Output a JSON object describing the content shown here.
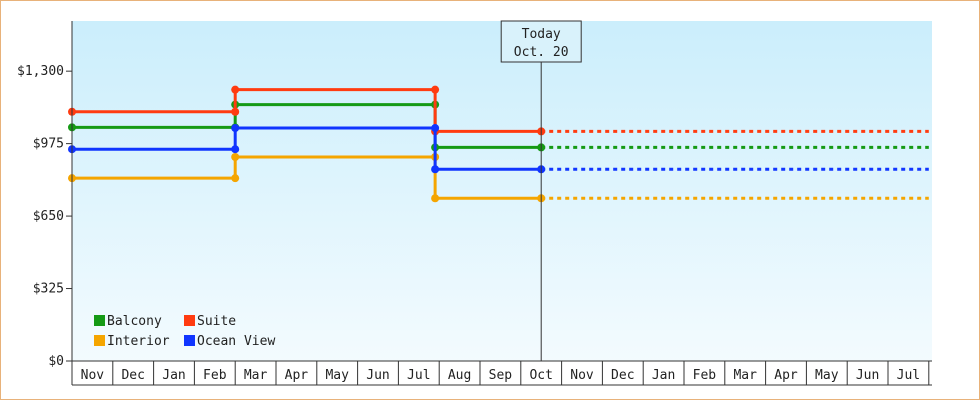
{
  "chart_data": {
    "type": "line",
    "step": true,
    "x_labels": [
      "Nov",
      "Dec",
      "Jan",
      "Feb",
      "Mar",
      "Apr",
      "May",
      "Jun",
      "Jul",
      "Aug",
      "Sep",
      "Oct",
      "Nov",
      "Dec",
      "Jan",
      "Feb",
      "Mar",
      "Apr",
      "May",
      "Jun",
      "Jul"
    ],
    "y_ticks": [
      "$0",
      "$325",
      "$650",
      "$975",
      "$1,300"
    ],
    "ylim": [
      0,
      1525
    ],
    "today": {
      "line1": "Today",
      "line2": "Oct. 20",
      "x": 11.5
    },
    "series": [
      {
        "name": "Balcony",
        "color": "#159a15",
        "points": [
          [
            0,
            1048
          ],
          [
            4,
            1048
          ],
          [
            4,
            1150
          ],
          [
            8.9,
            1150
          ],
          [
            8.9,
            958
          ],
          [
            11.5,
            958
          ]
        ],
        "projected_to": 21
      },
      {
        "name": "Suite",
        "color": "#ff3b10",
        "points": [
          [
            0,
            1118
          ],
          [
            4,
            1118
          ],
          [
            4,
            1217
          ],
          [
            8.9,
            1217
          ],
          [
            8.9,
            1030
          ],
          [
            11.5,
            1030
          ]
        ],
        "projected_to": 21
      },
      {
        "name": "Interior",
        "color": "#f5a500",
        "points": [
          [
            0,
            820
          ],
          [
            4,
            820
          ],
          [
            4,
            915
          ],
          [
            8.9,
            915
          ],
          [
            8.9,
            730
          ],
          [
            11.5,
            730
          ]
        ],
        "projected_to": 21
      },
      {
        "name": "Ocean View",
        "color": "#1035ff",
        "points": [
          [
            0,
            950
          ],
          [
            4,
            950
          ],
          [
            4,
            1045
          ],
          [
            8.9,
            1045
          ],
          [
            8.9,
            860
          ],
          [
            11.5,
            860
          ]
        ],
        "projected_to": 21
      }
    ]
  }
}
